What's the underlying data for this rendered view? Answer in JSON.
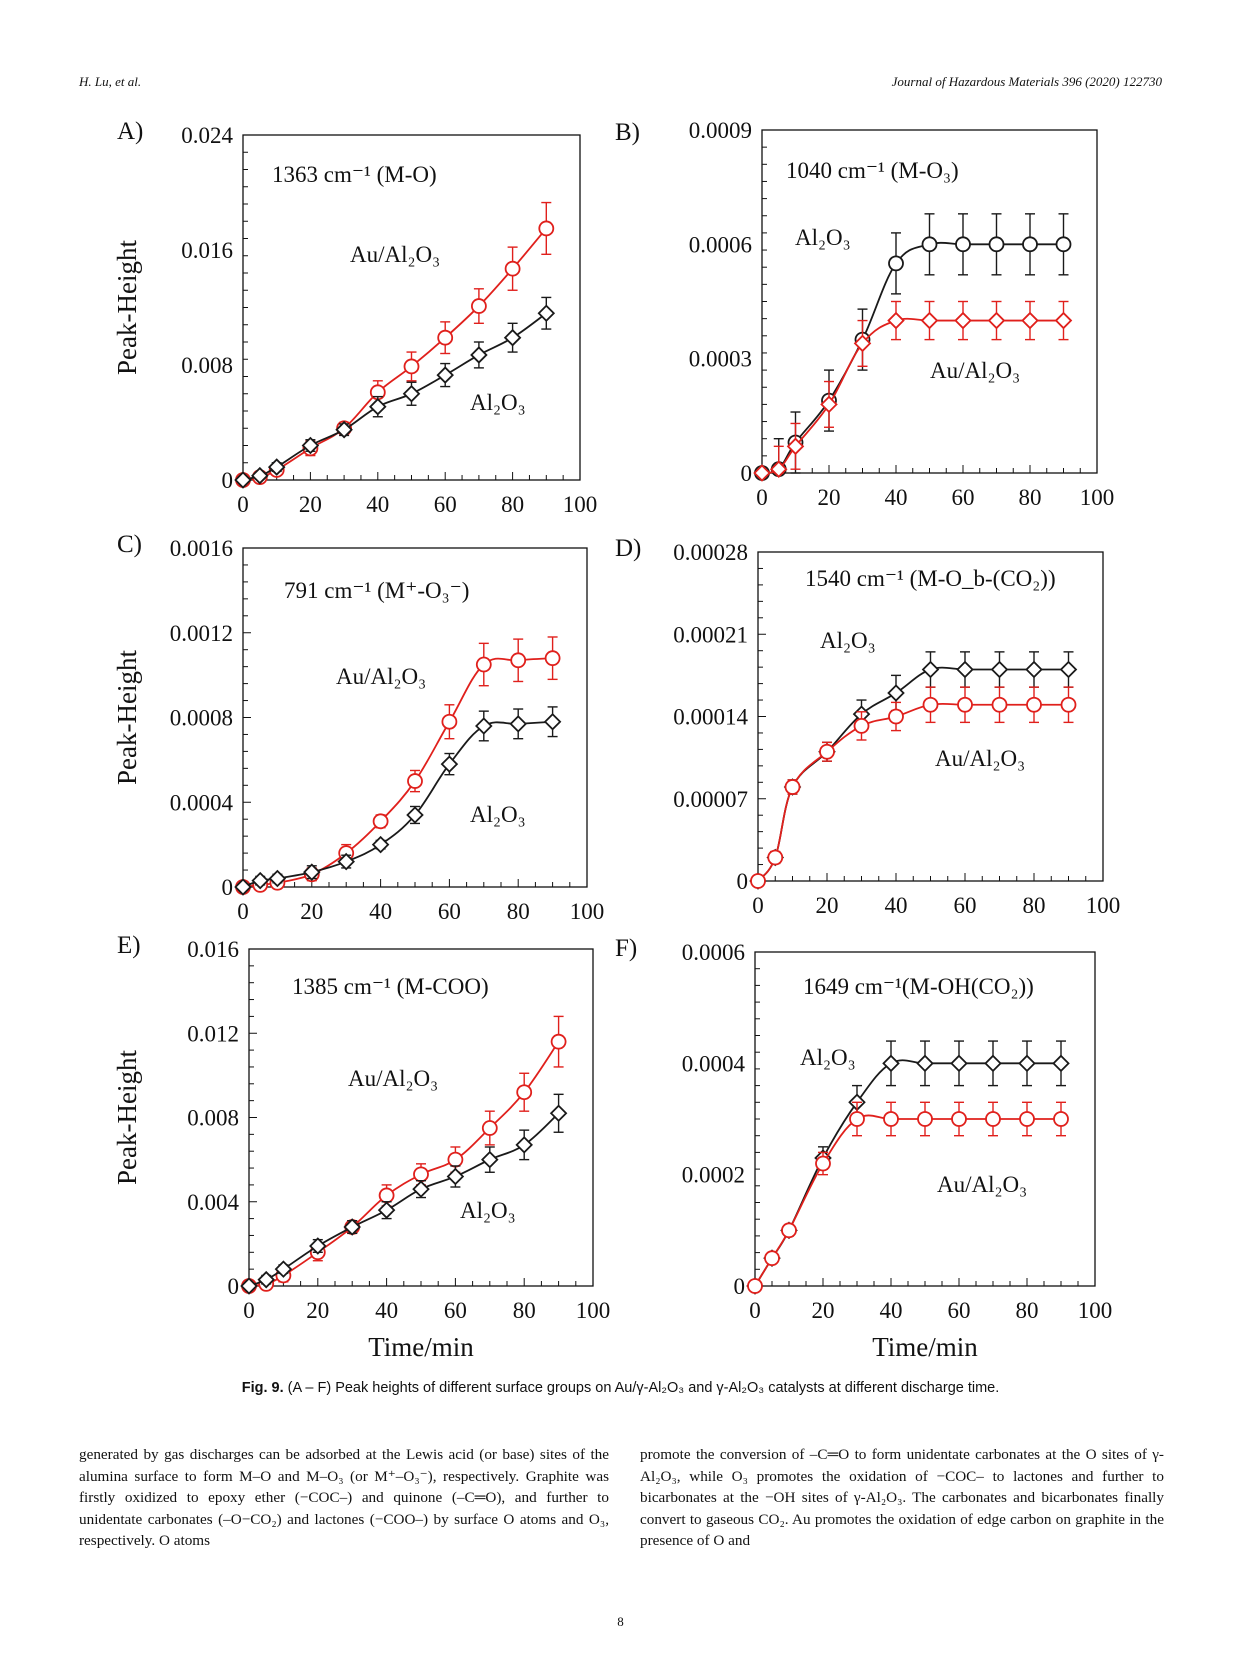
{
  "header": {
    "authors": "H. Lu, et al.",
    "journal": "Journal of Hazardous Materials 396 (2020) 122730"
  },
  "figure": {
    "ylabel": "Peak-Height",
    "xlabel": "Time/min",
    "caption_label": "Fig. 9.",
    "caption_text": " (A – F) Peak heights of different surface groups on Au/γ-Al₂O₃ and γ-Al₂O₃ catalysts at different discharge time."
  },
  "colors": {
    "au": "#e0201c",
    "al": "#1a1a1a"
  },
  "chart_data": [
    {
      "panel": "A)",
      "type": "line",
      "title": "1363 cm⁻¹ (M-O)",
      "xlim": [
        0,
        100
      ],
      "ylim": [
        0,
        0.024
      ],
      "yticks": [
        "0",
        "0.008",
        "0.016",
        "0.024"
      ],
      "xticks": [
        "0",
        "20",
        "40",
        "60",
        "80",
        "100"
      ],
      "x": [
        0,
        5,
        10,
        20,
        30,
        40,
        50,
        60,
        70,
        80,
        90
      ],
      "series": [
        {
          "name": "Au/Al₂O₃",
          "marker": "circle",
          "color": "#e0201c",
          "values": [
            0,
            0.0002,
            0.0007,
            0.0022,
            0.0036,
            0.0061,
            0.0079,
            0.0099,
            0.0121,
            0.0147,
            0.0175
          ],
          "errors": [
            0,
            0.0002,
            0.0003,
            0.0005,
            0.0004,
            0.0008,
            0.001,
            0.0011,
            0.0012,
            0.0015,
            0.0018
          ]
        },
        {
          "name": "Al₂O₃",
          "marker": "diamond",
          "color": "#1a1a1a",
          "values": [
            0,
            0.0003,
            0.0009,
            0.0024,
            0.0035,
            0.0051,
            0.006,
            0.0073,
            0.0087,
            0.0099,
            0.0116
          ],
          "errors": [
            0,
            0.0002,
            0.0003,
            0.0004,
            0.0004,
            0.0007,
            0.0008,
            0.0008,
            0.0009,
            0.001,
            0.0011
          ]
        }
      ],
      "labels": [
        {
          "text": "Au/Al₂O₃",
          "series": 0
        },
        {
          "text": "Al₂O₃",
          "series": 1
        }
      ]
    },
    {
      "panel": "B)",
      "type": "line",
      "title": "1040 cm⁻¹ (M-O₃)",
      "xlim": [
        0,
        100
      ],
      "ylim": [
        0,
        0.0009
      ],
      "yticks": [
        "0",
        "0.0003",
        "0.0006",
        "0.0009"
      ],
      "xticks": [
        "0",
        "20",
        "40",
        "60",
        "80",
        "100"
      ],
      "x": [
        0,
        5,
        10,
        20,
        30,
        40,
        50,
        60,
        70,
        80,
        90
      ],
      "series": [
        {
          "name": "Al₂O₃",
          "marker": "circle",
          "color": "#1a1a1a",
          "values": [
            0,
            1e-05,
            8e-05,
            0.00019,
            0.00035,
            0.00055,
            0.0006,
            0.0006,
            0.0006,
            0.0006,
            0.0006
          ],
          "errors": [
            0,
            8e-05,
            8e-05,
            8e-05,
            8e-05,
            8e-05,
            8e-05,
            8e-05,
            8e-05,
            8e-05,
            8e-05
          ]
        },
        {
          "name": "Au/Al₂O₃",
          "marker": "diamond",
          "color": "#e0201c",
          "values": [
            0,
            1e-05,
            7e-05,
            0.00018,
            0.00034,
            0.0004,
            0.0004,
            0.0004,
            0.0004,
            0.0004,
            0.0004
          ],
          "errors": [
            0,
            6e-05,
            6e-05,
            6e-05,
            6e-05,
            5e-05,
            5e-05,
            5e-05,
            5e-05,
            5e-05,
            5e-05
          ]
        }
      ],
      "labels": [
        {
          "text": "Al₂O₃",
          "series": 0
        },
        {
          "text": "Au/Al₂O₃",
          "series": 1
        }
      ]
    },
    {
      "panel": "C)",
      "type": "line",
      "title": "791 cm⁻¹ (M⁺-O₃⁻)",
      "xlim": [
        0,
        100
      ],
      "ylim": [
        0,
        0.0016
      ],
      "yticks": [
        "0",
        "0.0004",
        "0.0008",
        "0.0012",
        "0.0016"
      ],
      "xticks": [
        "0",
        "20",
        "40",
        "60",
        "80",
        "100"
      ],
      "x": [
        0,
        5,
        10,
        20,
        30,
        40,
        50,
        60,
        70,
        80,
        90
      ],
      "series": [
        {
          "name": "Au/Al₂O₃",
          "marker": "circle",
          "color": "#e0201c",
          "values": [
            0,
            1e-05,
            2e-05,
            6e-05,
            0.00016,
            0.00031,
            0.0005,
            0.00078,
            0.00105,
            0.00107,
            0.00108
          ],
          "errors": [
            0,
            2e-05,
            2e-05,
            3e-05,
            4e-05,
            3e-05,
            5e-05,
            8e-05,
            0.0001,
            0.0001,
            0.0001
          ]
        },
        {
          "name": "Al₂O₃",
          "marker": "diamond",
          "color": "#1a1a1a",
          "values": [
            0,
            3e-05,
            4e-05,
            7e-05,
            0.00012,
            0.0002,
            0.00034,
            0.00058,
            0.00076,
            0.00077,
            0.00078
          ],
          "errors": [
            0,
            2e-05,
            2e-05,
            3e-05,
            3e-05,
            2e-05,
            4e-05,
            5e-05,
            7e-05,
            7e-05,
            7e-05
          ]
        }
      ],
      "labels": [
        {
          "text": "Au/Al₂O₃",
          "series": 0
        },
        {
          "text": "Al₂O₃",
          "series": 1
        }
      ]
    },
    {
      "panel": "D)",
      "type": "line",
      "title": "1540 cm⁻¹ (M-O_b-(CO₂))",
      "xlim": [
        0,
        100
      ],
      "ylim": [
        0,
        0.00028
      ],
      "yticks": [
        "0",
        "0.00007",
        "0.00014",
        "0.00021",
        "0.00028"
      ],
      "xticks": [
        "0",
        "20",
        "40",
        "60",
        "80",
        "100"
      ],
      "x": [
        0,
        5,
        10,
        20,
        30,
        40,
        50,
        60,
        70,
        80,
        90
      ],
      "series": [
        {
          "name": "Al₂O₃",
          "marker": "diamond",
          "color": "#1a1a1a",
          "values": [
            0,
            2e-05,
            8e-05,
            0.00011,
            0.000142,
            0.00016,
            0.00018,
            0.00018,
            0.00018,
            0.00018,
            0.00018
          ],
          "errors": [
            0,
            5e-06,
            6e-06,
            8e-06,
            1.2e-05,
            1.5e-05,
            1.5e-05,
            1.5e-05,
            1.5e-05,
            1.5e-05,
            1.5e-05
          ]
        },
        {
          "name": "Au/Al₂O₃",
          "marker": "circle",
          "color": "#e0201c",
          "values": [
            0,
            2e-05,
            8e-05,
            0.00011,
            0.000132,
            0.00014,
            0.00015,
            0.00015,
            0.00015,
            0.00015,
            0.00015
          ],
          "errors": [
            0,
            5e-06,
            6e-06,
            8e-06,
            1.2e-05,
            1.2e-05,
            1.5e-05,
            1.5e-05,
            1.5e-05,
            1.5e-05,
            1.5e-05
          ]
        }
      ],
      "labels": [
        {
          "text": "Al₂O₃",
          "series": 0
        },
        {
          "text": "Au/Al₂O₃",
          "series": 1
        }
      ]
    },
    {
      "panel": "E)",
      "type": "line",
      "title": "1385 cm⁻¹ (M-COO)",
      "xlim": [
        0,
        100
      ],
      "ylim": [
        0,
        0.016
      ],
      "yticks": [
        "0",
        "0.004",
        "0.008",
        "0.012",
        "0.016"
      ],
      "xticks": [
        "0",
        "20",
        "40",
        "60",
        "80",
        "100"
      ],
      "x": [
        0,
        5,
        10,
        20,
        30,
        40,
        50,
        60,
        70,
        80,
        90
      ],
      "series": [
        {
          "name": "Au/Al₂O₃",
          "marker": "circle",
          "color": "#e0201c",
          "values": [
            0,
            0.0001,
            0.0005,
            0.0016,
            0.0028,
            0.0043,
            0.0053,
            0.006,
            0.0075,
            0.0092,
            0.0116
          ],
          "errors": [
            0,
            0.0002,
            0.0003,
            0.0004,
            0.0003,
            0.0005,
            0.0005,
            0.0006,
            0.0008,
            0.0009,
            0.0012
          ]
        },
        {
          "name": "Al₂O₃",
          "marker": "diamond",
          "color": "#1a1a1a",
          "values": [
            0,
            0.0003,
            0.0008,
            0.0019,
            0.0028,
            0.0036,
            0.0046,
            0.0052,
            0.006,
            0.0067,
            0.0082
          ],
          "errors": [
            0,
            0.0002,
            0.0002,
            0.0003,
            0.0003,
            0.0004,
            0.0004,
            0.0005,
            0.0006,
            0.0007,
            0.0009
          ]
        }
      ],
      "labels": [
        {
          "text": "Au/Al₂O₃",
          "series": 0
        },
        {
          "text": "Al₂O₃",
          "series": 1
        }
      ]
    },
    {
      "panel": "F)",
      "type": "line",
      "title": "1649 cm⁻¹(M-OH(CO₂))",
      "xlim": [
        0,
        100
      ],
      "ylim": [
        0,
        0.0006
      ],
      "yticks": [
        "0",
        "0.0002",
        "0.0004",
        "0.0006"
      ],
      "xticks": [
        "0",
        "20",
        "40",
        "60",
        "80",
        "100"
      ],
      "x": [
        0,
        5,
        10,
        20,
        30,
        40,
        50,
        60,
        70,
        80,
        90
      ],
      "series": [
        {
          "name": "Al₂O₃",
          "marker": "diamond",
          "color": "#1a1a1a",
          "values": [
            0,
            5e-05,
            0.0001,
            0.00023,
            0.00033,
            0.0004,
            0.0004,
            0.0004,
            0.0004,
            0.0004,
            0.0004
          ],
          "errors": [
            0,
            8e-06,
            1e-05,
            2e-05,
            3e-05,
            4e-05,
            4e-05,
            4e-05,
            4e-05,
            4e-05,
            4e-05
          ]
        },
        {
          "name": "Au/Al₂O₃",
          "marker": "circle",
          "color": "#e0201c",
          "values": [
            0,
            5e-05,
            0.0001,
            0.00022,
            0.0003,
            0.0003,
            0.0003,
            0.0003,
            0.0003,
            0.0003,
            0.0003
          ],
          "errors": [
            0,
            8e-06,
            1e-05,
            2e-05,
            3e-05,
            3e-05,
            3e-05,
            3e-05,
            3e-05,
            3e-05,
            3e-05
          ]
        }
      ],
      "labels": [
        {
          "text": "Al₂O₃",
          "series": 0
        },
        {
          "text": "Au/Al₂O₃",
          "series": 1
        }
      ]
    }
  ],
  "body": {
    "left": "generated by gas discharges can be adsorbed at the Lewis acid (or base) sites of the alumina surface to form M–O and M–O₃ (or M⁺–O₃⁻), respectively. Graphite was firstly oxidized to epoxy ether (−COC–) and quinone (–C═O), and further to unidentate carbonates (–O−CO₂) and lactones (−COO–) by surface O atoms and O₃, respectively. O atoms",
    "right": "promote the conversion of –C═O to form unidentate carbonates at the O sites of γ-Al₂O₃, while O₃ promotes the oxidation of −COC– to lactones and further to bicarbonates at the −OH sites of γ-Al₂O₃. The carbonates and bicarbonates finally convert to gaseous CO₂. Au promotes the oxidation of edge carbon on graphite in the presence of O and"
  },
  "page_number": "8"
}
